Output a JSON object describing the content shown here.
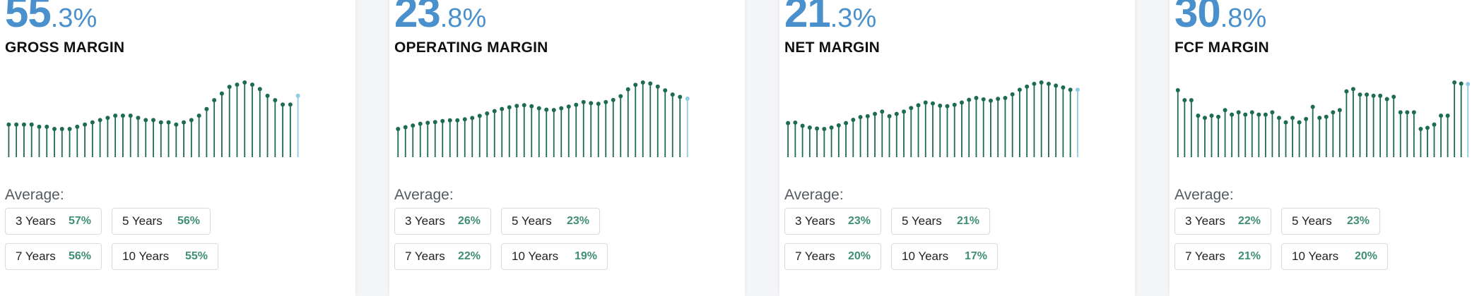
{
  "colors": {
    "accent": "#4a90cc",
    "bar": "#1d6b52",
    "bar_latest": "#8fcbe3",
    "avg_value": "#3f8f72"
  },
  "average_label": "Average:",
  "cards": [
    {
      "id": "gross",
      "value_int": "55",
      "value_dec": ".3%",
      "title": "GROSS MARGIN",
      "averages": [
        {
          "period": "3 Years",
          "value": "57%"
        },
        {
          "period": "5 Years",
          "value": "56%"
        },
        {
          "period": "7 Years",
          "value": "56%"
        },
        {
          "period": "10 Years",
          "value": "55%"
        }
      ]
    },
    {
      "id": "operating",
      "value_int": "23",
      "value_dec": ".8%",
      "title": "OPERATING MARGIN",
      "averages": [
        {
          "period": "3 Years",
          "value": "26%"
        },
        {
          "period": "5 Years",
          "value": "23%"
        },
        {
          "period": "7 Years",
          "value": "22%"
        },
        {
          "period": "10 Years",
          "value": "19%"
        }
      ]
    },
    {
      "id": "net",
      "value_int": "21",
      "value_dec": ".3%",
      "title": "NET MARGIN",
      "averages": [
        {
          "period": "3 Years",
          "value": "23%"
        },
        {
          "period": "5 Years",
          "value": "21%"
        },
        {
          "period": "7 Years",
          "value": "20%"
        },
        {
          "period": "10 Years",
          "value": "17%"
        }
      ]
    },
    {
      "id": "fcf",
      "value_int": "30",
      "value_dec": ".8%",
      "title": "FCF MARGIN",
      "averages": [
        {
          "period": "3 Years",
          "value": "22%"
        },
        {
          "period": "5 Years",
          "value": "23%"
        },
        {
          "period": "7 Years",
          "value": "21%"
        },
        {
          "period": "10 Years",
          "value": "20%"
        }
      ]
    }
  ],
  "chart_data": [
    {
      "type": "bar",
      "series": [
        {
          "values": [
            54.0,
            54.0,
            54.0,
            54.0,
            53.9,
            53.9,
            53.8,
            53.8,
            53.8,
            53.9,
            54.0,
            54.1,
            54.2,
            54.3,
            54.4,
            54.4,
            54.4,
            54.3,
            54.2,
            54.2,
            54.1,
            54.1,
            54.0,
            54.1,
            54.2,
            54.4,
            54.7,
            55.1,
            55.4,
            55.7,
            55.8,
            55.9,
            55.8,
            55.6,
            55.3,
            55.1,
            54.9,
            54.9,
            55.3
          ]
        }
      ],
      "ylim": [
        0,
        60
      ]
    },
    {
      "type": "bar",
      "series": [
        {
          "values": [
            15.0,
            15.5,
            16.0,
            16.5,
            16.8,
            17.0,
            17.3,
            17.5,
            17.5,
            17.8,
            18.2,
            18.8,
            19.5,
            20.2,
            20.8,
            21.3,
            21.7,
            21.9,
            21.6,
            21.0,
            20.6,
            20.5,
            21.0,
            21.5,
            22.0,
            22.8,
            22.5,
            22.3,
            22.8,
            23.4,
            24.5,
            26.5,
            27.8,
            28.5,
            28.2,
            27.3,
            26.2,
            25.0,
            24.3,
            23.8
          ]
        }
      ],
      "ylim": [
        0,
        32
      ]
    },
    {
      "type": "bar",
      "series": [
        {
          "values": [
            14.0,
            14.1,
            13.4,
            13.0,
            12.8,
            12.7,
            13.0,
            13.5,
            14.0,
            14.7,
            15.3,
            15.5,
            16.0,
            16.5,
            15.5,
            16.0,
            16.5,
            17.3,
            17.9,
            18.5,
            18.3,
            17.8,
            17.7,
            18.0,
            18.5,
            19.1,
            19.5,
            19.2,
            18.9,
            19.3,
            19.5,
            20.3,
            21.3,
            22.0,
            22.6,
            22.9,
            22.6,
            22.2,
            21.8,
            21.3,
            21.3
          ]
        }
      ],
      "ylim": [
        0,
        25
      ]
    },
    {
      "type": "bar",
      "series": [
        {
          "values": [
            28.0,
            23.5,
            23.5,
            16.5,
            15.5,
            16.5,
            16.0,
            19.0,
            17.0,
            18.0,
            17.0,
            18.0,
            17.0,
            17.0,
            18.0,
            15.5,
            13.5,
            15.5,
            13.5,
            15.0,
            20.5,
            15.5,
            16.0,
            18.0,
            19.0,
            27.5,
            28.5,
            26.0,
            26.0,
            25.5,
            25.5,
            24.0,
            25.0,
            18.0,
            18.0,
            18.0,
            10.5,
            11.0,
            12.5,
            16.5,
            16.5,
            31.5,
            31.0,
            30.8
          ]
        }
      ],
      "ylim": [
        0,
        35
      ]
    }
  ]
}
